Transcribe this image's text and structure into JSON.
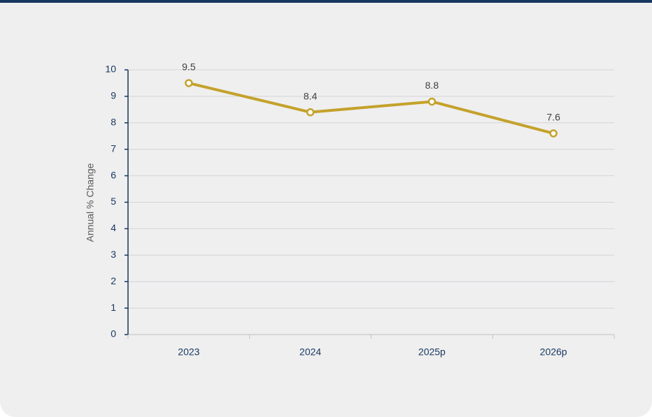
{
  "chart_data": {
    "type": "line",
    "y_axis_label": "Annual % Change",
    "categories": [
      "2023",
      "2024",
      "2025p",
      "2026p"
    ],
    "series": [
      {
        "name": "Annual % Change",
        "color": "#c4a22b",
        "values": [
          9.5,
          8.4,
          8.8,
          7.6
        ]
      }
    ],
    "ylim": [
      0,
      10
    ],
    "yticks": [
      0,
      1,
      2,
      3,
      4,
      5,
      6,
      7,
      8,
      9,
      10
    ],
    "grid": true
  }
}
